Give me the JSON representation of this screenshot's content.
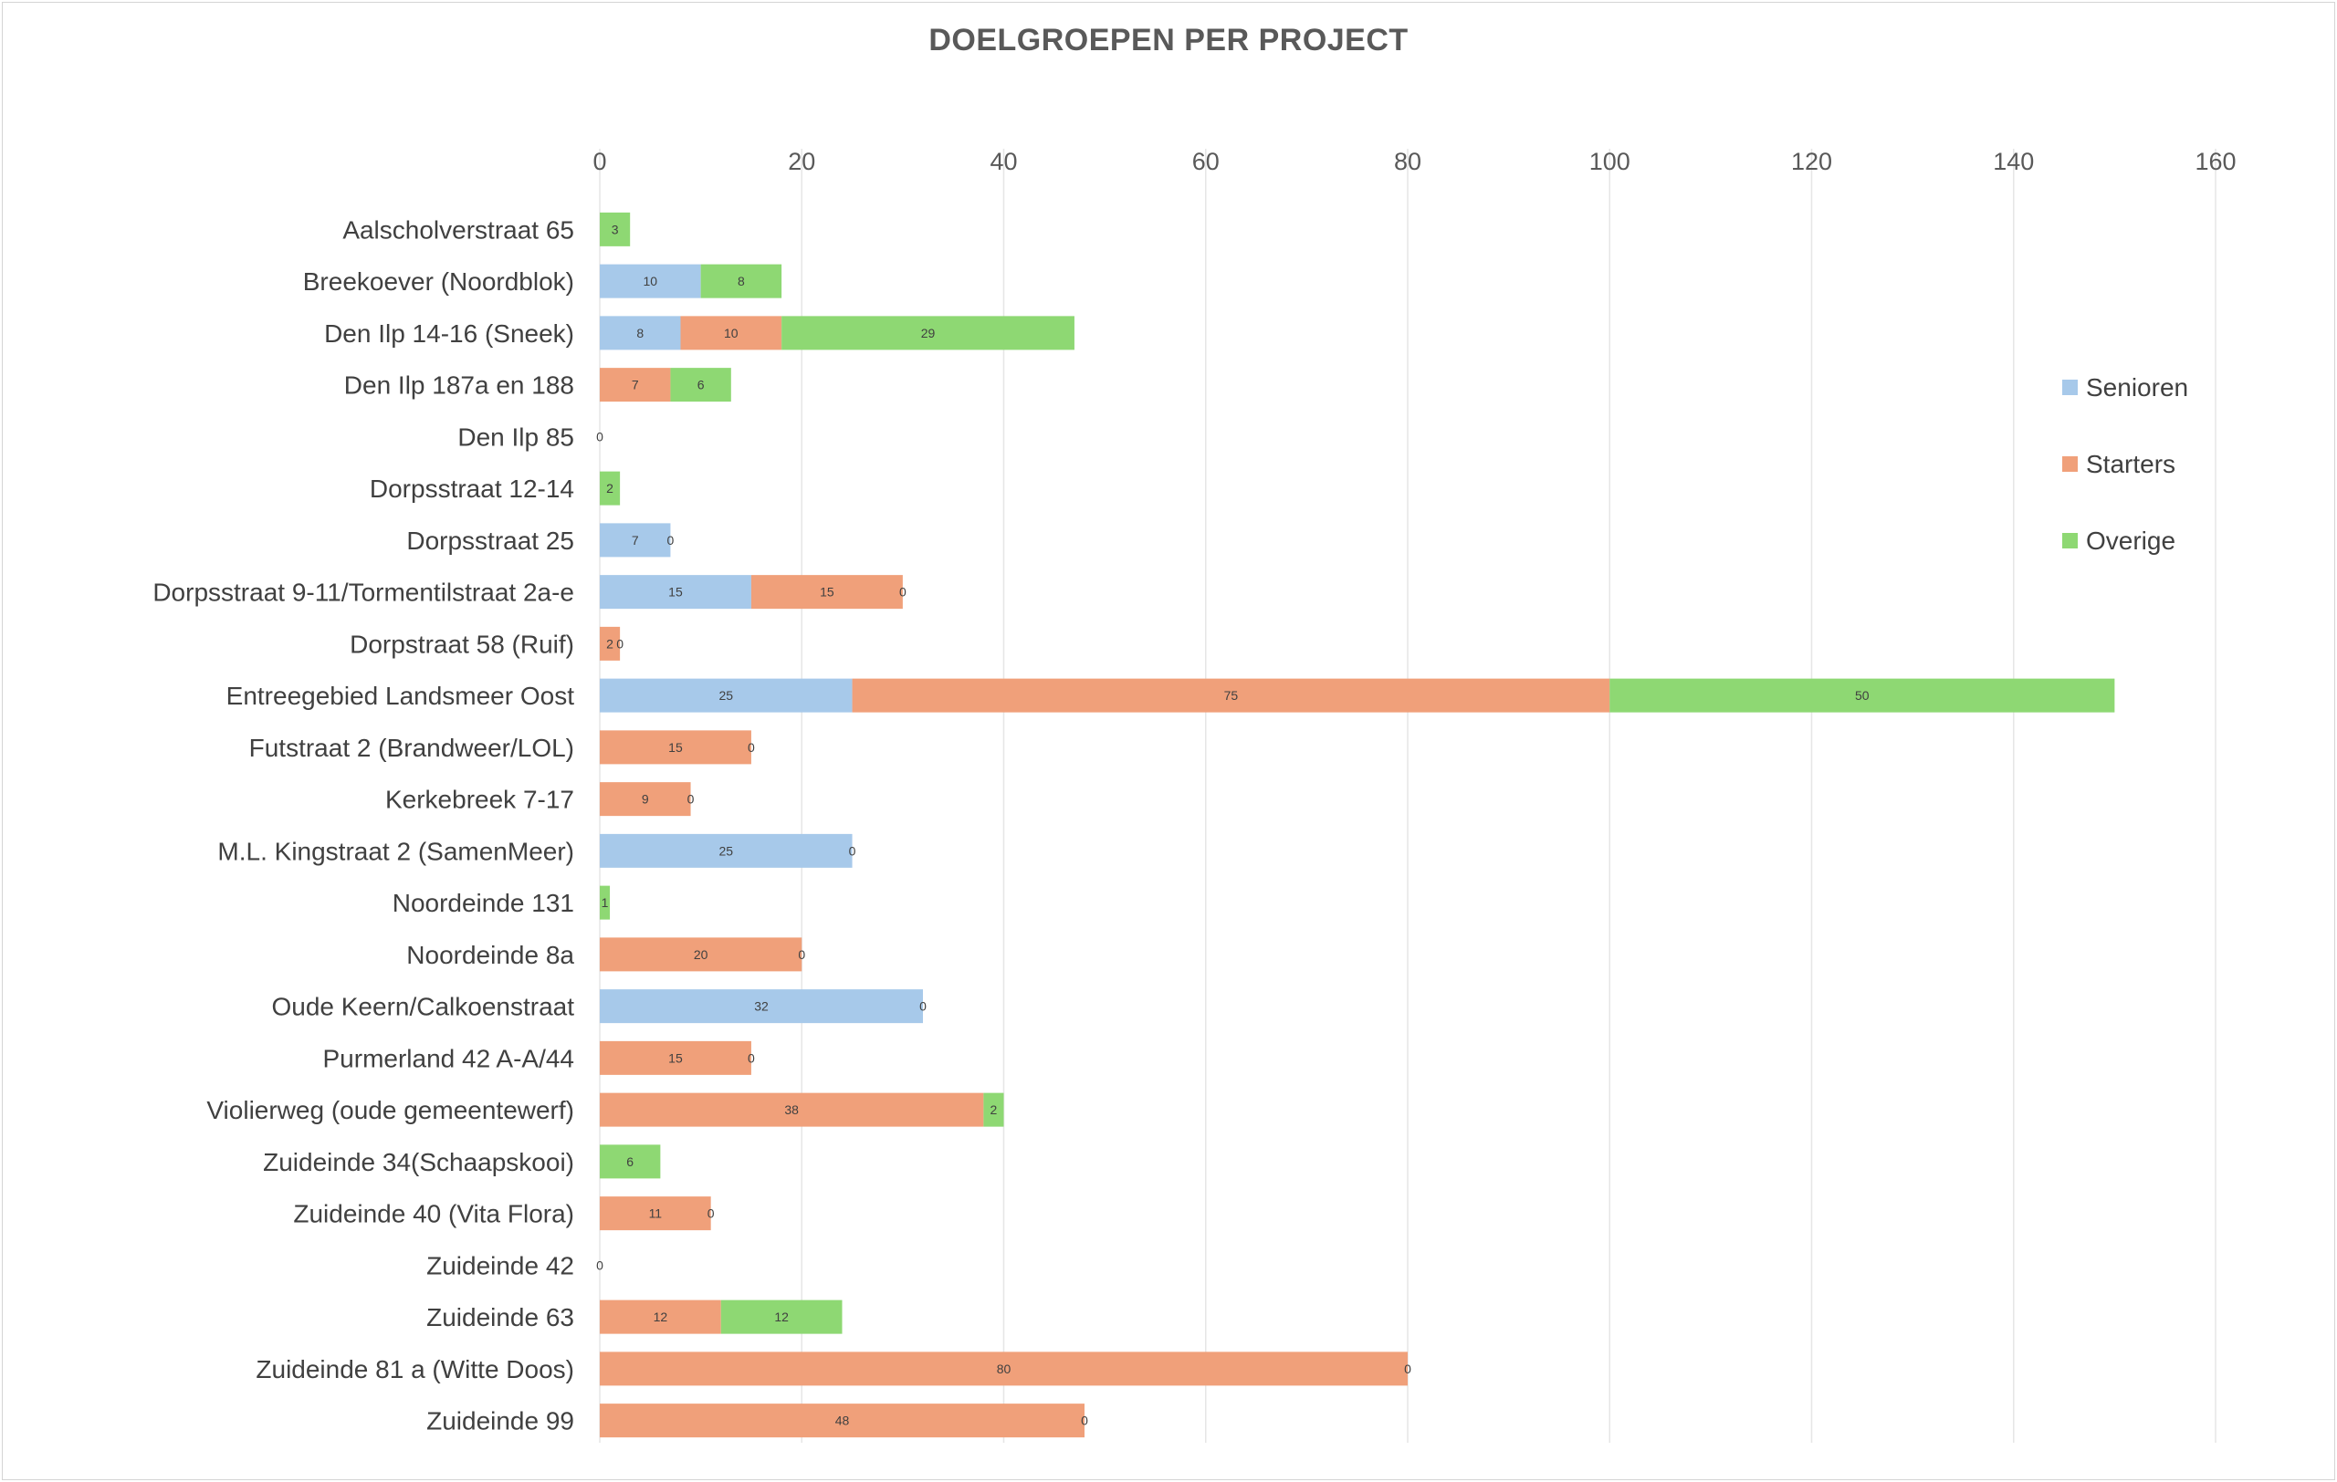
{
  "colors": {
    "senioren": "#a7c9ea",
    "starters": "#f0a07a",
    "overige": "#8ed873",
    "grid": "#e6e6e6"
  },
  "chart_data": {
    "type": "bar",
    "orientation": "horizontal",
    "stacked": true,
    "title": "DOELGROEPEN PER PROJECT",
    "xlabel": "",
    "ylabel": "",
    "xlim": [
      0,
      160
    ],
    "xticks": [
      0,
      20,
      40,
      60,
      80,
      100,
      120,
      140,
      160
    ],
    "x_axis_position": "top",
    "grid": true,
    "legend_position": "right",
    "categories": [
      "Aalscholverstraat 65",
      "Breekoever (Noordblok)",
      "Den Ilp 14-16 (Sneek)",
      "Den Ilp 187a en 188",
      "Den Ilp 85",
      "Dorpsstraat 12-14",
      "Dorpsstraat 25",
      "Dorpsstraat 9-11/Tormentilstraat 2a-e",
      "Dorpstraat 58 (Ruif)",
      "Entreegebied Landsmeer Oost",
      "Futstraat 2 (Brandweer/LOL)",
      "Kerkebreek 7-17",
      "M.L. Kingstraat 2 (SamenMeer)",
      "Noordeinde 131",
      "Noordeinde 8a",
      "Oude Keern/Calkoenstraat",
      "Purmerland 42 A-A/44",
      "Violierweg (oude gemeentewerf)",
      "Zuideinde 34(Schaapskooi)",
      "Zuideinde 40 (Vita Flora)",
      "Zuideinde 42",
      "Zuideinde 63",
      "Zuideinde 81 a (Witte Doos)",
      "Zuideinde 99"
    ],
    "series": [
      {
        "name": "Senioren",
        "values": [
          null,
          10,
          8,
          null,
          null,
          null,
          7,
          15,
          null,
          25,
          null,
          null,
          25,
          null,
          null,
          32,
          null,
          null,
          null,
          null,
          null,
          null,
          null,
          null
        ]
      },
      {
        "name": "Starters",
        "values": [
          null,
          null,
          10,
          7,
          0,
          null,
          0,
          15,
          2,
          75,
          15,
          9,
          0,
          null,
          20,
          0,
          15,
          38,
          null,
          11,
          0,
          12,
          80,
          48
        ]
      },
      {
        "name": "Overige",
        "values": [
          3,
          8,
          29,
          6,
          null,
          2,
          null,
          0,
          0,
          50,
          0,
          0,
          null,
          1,
          0,
          null,
          0,
          2,
          6,
          0,
          null,
          12,
          0,
          0
        ]
      }
    ],
    "data_labels": [
      [
        "",
        "10",
        "8",
        "",
        "",
        "",
        "7",
        "15",
        "",
        "25",
        "",
        "",
        "25",
        "",
        "",
        "32",
        "",
        "",
        "",
        "",
        "",
        "",
        "",
        ""
      ],
      [
        "",
        "",
        "10",
        "7",
        "0",
        "",
        "0",
        "15",
        "2",
        "75",
        "15",
        "9",
        "0",
        "",
        "20",
        "0",
        "15",
        "38",
        "",
        "11",
        "0",
        "12",
        "80",
        "48"
      ],
      [
        "3",
        "8",
        "29",
        "6",
        "",
        "2",
        "",
        "0",
        "0",
        "50",
        "0",
        "0",
        "",
        "1",
        "0",
        "",
        "0",
        "2",
        "6",
        "0",
        "",
        "12",
        "0",
        "0"
      ]
    ]
  }
}
